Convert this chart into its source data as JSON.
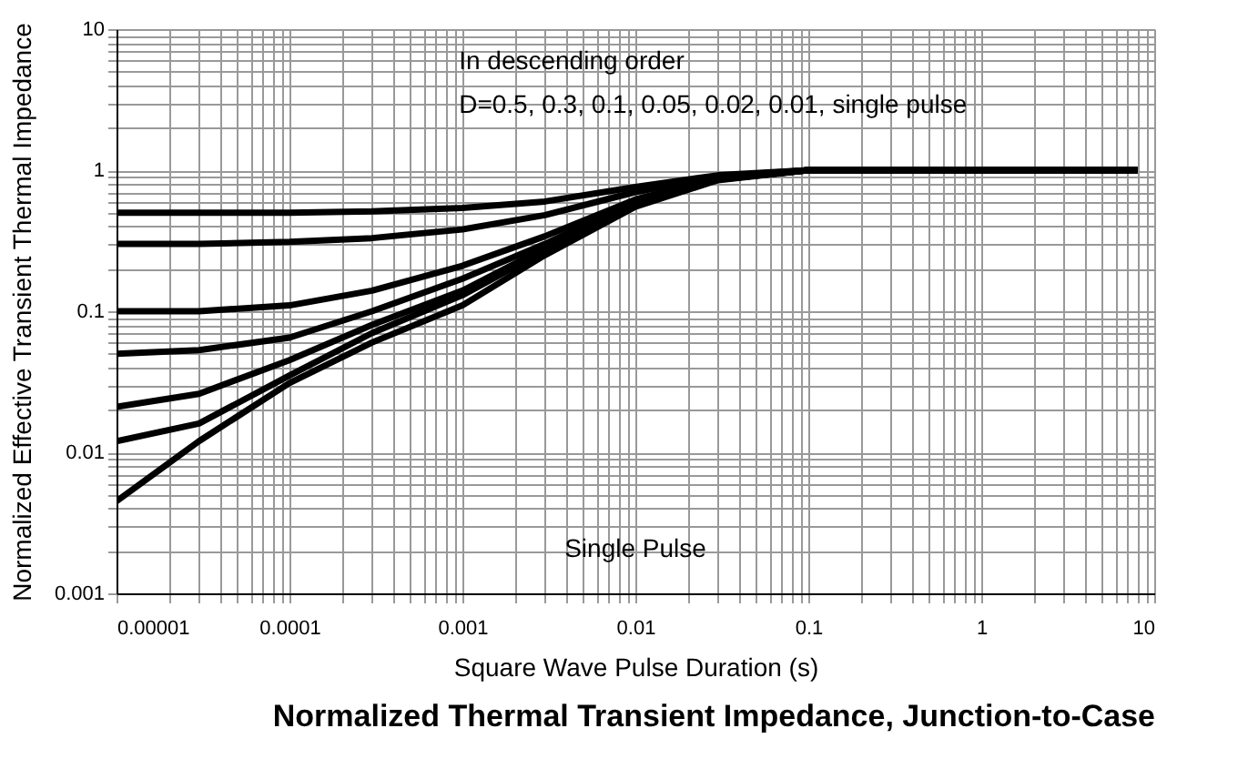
{
  "chart_data": {
    "type": "line",
    "title": "Normalized Thermal Transient Impedance, Junction-to-Case",
    "xlabel": "Square Wave Pulse Duration (s)",
    "ylabel": "Normalized Effective Transient Thermal Impedance",
    "annotations": [
      "In descending order",
      "D=0.5, 0.3, 0.1, 0.05, 0.02, 0.01, single pulse",
      "Single Pulse"
    ],
    "log": "xy",
    "grid": true,
    "legend": false,
    "marker": "none",
    "line_style": "solid",
    "x": [
      1e-05,
      3e-05,
      0.0001,
      0.0003,
      0.001,
      0.003,
      0.01,
      0.03,
      0.1,
      1,
      8
    ],
    "series": [
      {
        "color": "#000000",
        "values": [
          0.5,
          0.5,
          0.5,
          0.51,
          0.54,
          0.6,
          0.76,
          0.92,
          1,
          1,
          1
        ]
      },
      {
        "color": "#000000",
        "values": [
          0.3,
          0.3,
          0.31,
          0.33,
          0.38,
          0.48,
          0.7,
          0.9,
          1,
          1,
          1
        ]
      },
      {
        "color": "#000000",
        "values": [
          0.1,
          0.1,
          0.11,
          0.14,
          0.21,
          0.34,
          0.62,
          0.88,
          1,
          1,
          1
        ]
      },
      {
        "color": "#000000",
        "values": [
          0.05,
          0.053,
          0.065,
          0.1,
          0.17,
          0.3,
          0.6,
          0.87,
          1,
          1,
          1
        ]
      },
      {
        "color": "#000000",
        "values": [
          0.021,
          0.026,
          0.045,
          0.08,
          0.14,
          0.28,
          0.58,
          0.86,
          1,
          1,
          1
        ]
      },
      {
        "color": "#000000",
        "values": [
          0.012,
          0.016,
          0.035,
          0.07,
          0.13,
          0.27,
          0.57,
          0.86,
          1,
          1,
          1
        ]
      },
      {
        "color": "#000000",
        "values": [
          0.0045,
          0.012,
          0.031,
          0.06,
          0.11,
          0.25,
          0.55,
          0.85,
          1,
          1,
          1
        ]
      }
    ],
    "xlim": [
      1e-05,
      10
    ],
    "xticks": [
      {
        "value": 1e-05,
        "label": "0.00001"
      },
      {
        "value": 2e-05,
        "label": null
      },
      {
        "value": 3e-05,
        "label": null
      },
      {
        "value": 4e-05,
        "label": null
      },
      {
        "value": 5e-05,
        "label": null
      },
      {
        "value": 6e-05,
        "label": null
      },
      {
        "value": 7e-05,
        "label": null
      },
      {
        "value": 8e-05,
        "label": null
      },
      {
        "value": 9e-05,
        "label": null
      },
      {
        "value": 0.0001,
        "label": "0.0001"
      },
      {
        "value": 0.0002,
        "label": null
      },
      {
        "value": 0.0003,
        "label": null
      },
      {
        "value": 0.0004,
        "label": null
      },
      {
        "value": 0.0005,
        "label": null
      },
      {
        "value": 0.0006,
        "label": null
      },
      {
        "value": 0.0007,
        "label": null
      },
      {
        "value": 0.0008,
        "label": null
      },
      {
        "value": 0.0009,
        "label": null
      },
      {
        "value": 0.001,
        "label": "0.001"
      },
      {
        "value": 0.002,
        "label": null
      },
      {
        "value": 0.003,
        "label": null
      },
      {
        "value": 0.004,
        "label": null
      },
      {
        "value": 0.005,
        "label": null
      },
      {
        "value": 0.006,
        "label": null
      },
      {
        "value": 0.007,
        "label": null
      },
      {
        "value": 0.008,
        "label": null
      },
      {
        "value": 0.009,
        "label": null
      },
      {
        "value": 0.01,
        "label": "0.01"
      },
      {
        "value": 0.02,
        "label": null
      },
      {
        "value": 0.03,
        "label": null
      },
      {
        "value": 0.04,
        "label": null
      },
      {
        "value": 0.05,
        "label": null
      },
      {
        "value": 0.06,
        "label": null
      },
      {
        "value": 0.07,
        "label": null
      },
      {
        "value": 0.08,
        "label": null
      },
      {
        "value": 0.09,
        "label": null
      },
      {
        "value": 0.1,
        "label": "0.1"
      },
      {
        "value": 0.2,
        "label": null
      },
      {
        "value": 0.3,
        "label": null
      },
      {
        "value": 0.4,
        "label": null
      },
      {
        "value": 0.5,
        "label": null
      },
      {
        "value": 0.6,
        "label": null
      },
      {
        "value": 0.7,
        "label": null
      },
      {
        "value": 0.8,
        "label": null
      },
      {
        "value": 0.9,
        "label": null
      },
      {
        "value": 1,
        "label": "1"
      },
      {
        "value": 2,
        "label": null
      },
      {
        "value": 3,
        "label": null
      },
      {
        "value": 4,
        "label": null
      },
      {
        "value": 5,
        "label": null
      },
      {
        "value": 6,
        "label": null
      },
      {
        "value": 7,
        "label": null
      },
      {
        "value": 8,
        "label": null
      },
      {
        "value": 9,
        "label": null
      },
      {
        "value": 10,
        "label": "10"
      }
    ],
    "ylim": [
      0.001,
      10
    ],
    "yticks": [
      {
        "value": 0.001,
        "label": "0.001"
      },
      {
        "value": 0.002,
        "label": null
      },
      {
        "value": 0.003,
        "label": null
      },
      {
        "value": 0.004,
        "label": null
      },
      {
        "value": 0.005,
        "label": null
      },
      {
        "value": 0.006,
        "label": null
      },
      {
        "value": 0.007,
        "label": null
      },
      {
        "value": 0.008,
        "label": null
      },
      {
        "value": 0.009,
        "label": null
      },
      {
        "value": 0.01,
        "label": "0.01"
      },
      {
        "value": 0.02,
        "label": null
      },
      {
        "value": 0.03,
        "label": null
      },
      {
        "value": 0.04,
        "label": null
      },
      {
        "value": 0.05,
        "label": null
      },
      {
        "value": 0.06,
        "label": null
      },
      {
        "value": 0.07,
        "label": null
      },
      {
        "value": 0.08,
        "label": null
      },
      {
        "value": 0.09,
        "label": null
      },
      {
        "value": 0.1,
        "label": "0.1"
      },
      {
        "value": 0.2,
        "label": null
      },
      {
        "value": 0.3,
        "label": null
      },
      {
        "value": 0.4,
        "label": null
      },
      {
        "value": 0.5,
        "label": null
      },
      {
        "value": 0.6,
        "label": null
      },
      {
        "value": 0.7,
        "label": null
      },
      {
        "value": 0.8,
        "label": null
      },
      {
        "value": 0.9,
        "label": null
      },
      {
        "value": 1,
        "label": "1"
      },
      {
        "value": 2,
        "label": null
      },
      {
        "value": 3,
        "label": null
      },
      {
        "value": 4,
        "label": null
      },
      {
        "value": 5,
        "label": null
      },
      {
        "value": 6,
        "label": null
      },
      {
        "value": 7,
        "label": null
      },
      {
        "value": 8,
        "label": null
      },
      {
        "value": 9,
        "label": null
      },
      {
        "value": 10,
        "label": "10"
      }
    ]
  }
}
